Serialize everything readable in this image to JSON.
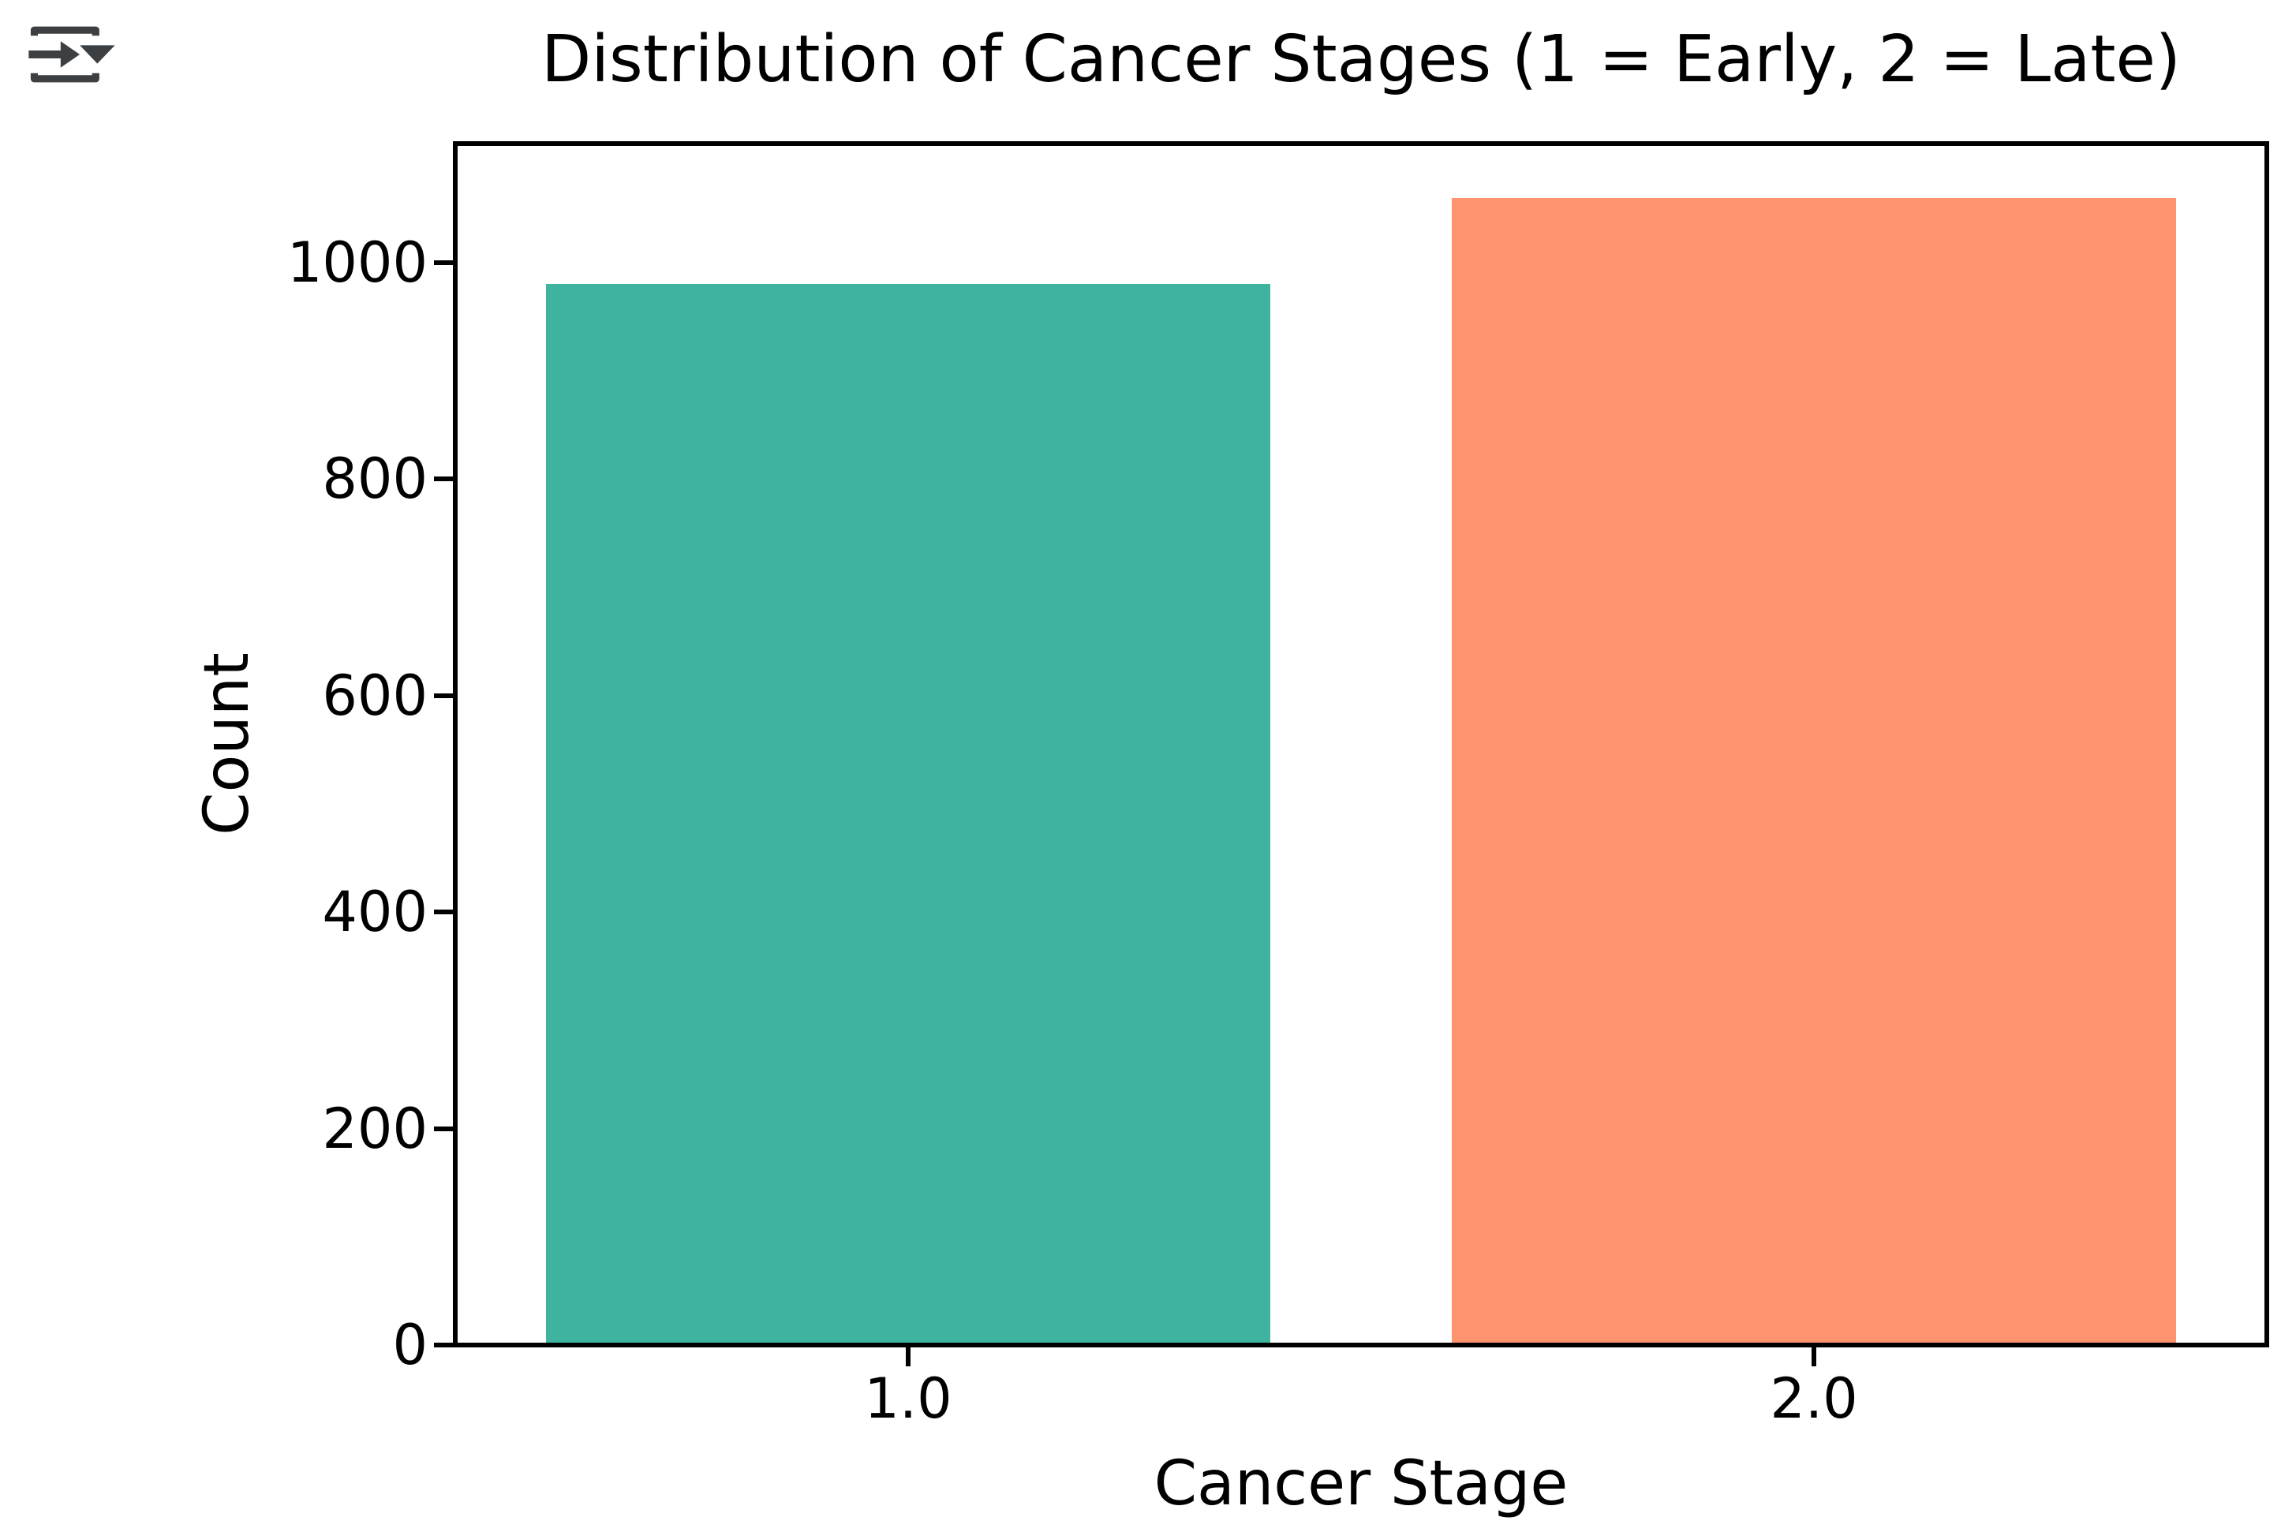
{
  "icon": {
    "name": "cell-output-menu",
    "color": "#3c4043"
  },
  "chart_data": {
    "type": "bar",
    "title": "Distribution of Cancer Stages (1 = Early, 2 = Late)",
    "xlabel": "Cancer Stage",
    "ylabel": "Count",
    "categories": [
      "1.0",
      "2.0"
    ],
    "x_positions": [
      1.0,
      2.0
    ],
    "values": [
      980,
      1060
    ],
    "bar_colors": [
      "#3eb4a0",
      "#fd946f"
    ],
    "bar_width": 0.8,
    "xlim": [
      0.5,
      2.5
    ],
    "ylim": [
      0,
      1110
    ],
    "yticks": [
      0,
      200,
      400,
      600,
      800,
      1000
    ],
    "grid": false,
    "legend": "none",
    "background_color": "#ffffff",
    "text_color": "#000000",
    "spine_color": "#000000"
  }
}
